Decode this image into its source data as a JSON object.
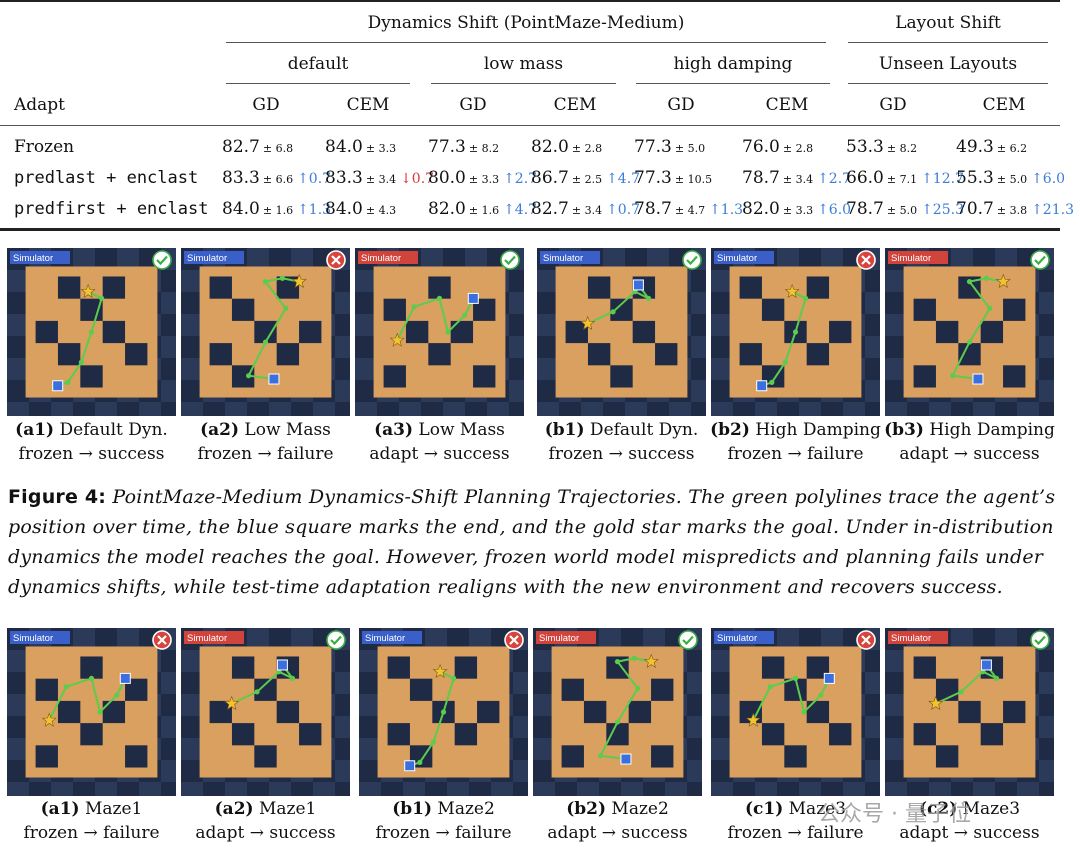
{
  "table": {
    "group_headers": [
      "Dynamics Shift (PointMaze-Medium)",
      "Layout Shift"
    ],
    "sub_headers": [
      "default",
      "low mass",
      "high damping",
      "Unseen Layouts"
    ],
    "adapt_label": "Adapt",
    "methods": [
      "GD",
      "CEM",
      "GD",
      "CEM",
      "GD",
      "CEM",
      "GD",
      "CEM"
    ],
    "rows": [
      {
        "label": "Frozen",
        "cells": [
          {
            "v": "82.7",
            "s": "± 6.8",
            "d": ""
          },
          {
            "v": "84.0",
            "s": "± 3.3",
            "d": ""
          },
          {
            "v": "77.3",
            "s": "± 8.2",
            "d": ""
          },
          {
            "v": "82.0",
            "s": "± 2.8",
            "d": ""
          },
          {
            "v": "77.3",
            "s": "± 5.0",
            "d": ""
          },
          {
            "v": "76.0",
            "s": "± 2.8",
            "d": ""
          },
          {
            "v": "53.3",
            "s": "± 8.2",
            "d": ""
          },
          {
            "v": "49.3",
            "s": "± 6.2",
            "d": ""
          }
        ]
      },
      {
        "label": "predlast + enclast",
        "cells": [
          {
            "v": "83.3",
            "s": "± 6.6",
            "d": "↑0.7",
            "dir": "up"
          },
          {
            "v": "83.3",
            "s": "± 3.4",
            "d": "↓0.7",
            "dir": "down"
          },
          {
            "v": "80.0",
            "s": "± 3.3",
            "d": "↑2.7",
            "dir": "up"
          },
          {
            "v": "86.7",
            "s": "± 2.5",
            "d": "↑4.7",
            "dir": "up"
          },
          {
            "v": "77.3",
            "s": "± 10.5",
            "d": ""
          },
          {
            "v": "78.7",
            "s": "± 3.4",
            "d": "↑2.7",
            "dir": "up"
          },
          {
            "v": "66.0",
            "s": "± 7.1",
            "d": "↑12.7",
            "dir": "up"
          },
          {
            "v": "55.3",
            "s": "± 5.0",
            "d": "↑6.0",
            "dir": "up"
          }
        ]
      },
      {
        "label": "predfirst + enclast",
        "cells": [
          {
            "v": "84.0",
            "s": "± 1.6",
            "d": "↑1.3",
            "dir": "up"
          },
          {
            "v": "84.0",
            "s": "± 4.3",
            "d": ""
          },
          {
            "v": "82.0",
            "s": "± 1.6",
            "d": "↑4.7",
            "dir": "up"
          },
          {
            "v": "82.7",
            "s": "± 3.4",
            "d": "↑0.7",
            "dir": "up"
          },
          {
            "v": "78.7",
            "s": "± 4.7",
            "d": "↑1.3",
            "dir": "up"
          },
          {
            "v": "82.0",
            "s": "± 3.3",
            "d": "↑6.0",
            "dir": "up"
          },
          {
            "v": "78.7",
            "s": "± 5.0",
            "d": "↑25.3",
            "dir": "up"
          },
          {
            "v": "70.7",
            "s": "± 3.8",
            "d": "↑21.3",
            "dir": "up"
          }
        ]
      }
    ]
  },
  "row1_panels": [
    {
      "badge": "Simulator",
      "badge_color": "#3a5fc8",
      "status": "success",
      "label": "(a1)",
      "title": "Default Dyn.",
      "line2": "frozen → success"
    },
    {
      "badge": "Simulator",
      "badge_color": "#3a5fc8",
      "status": "failure",
      "label": "(a2)",
      "title": "Low Mass",
      "line2": "frozen → failure"
    },
    {
      "badge": "Simulator",
      "badge_color": "#d0443c",
      "status": "success",
      "label": "(a3)",
      "title": "Low Mass",
      "line2": "adapt → success"
    },
    {
      "badge": "Simulator",
      "badge_color": "#3a5fc8",
      "status": "success",
      "label": "(b1)",
      "title": "Default Dyn.",
      "line2": "frozen → success"
    },
    {
      "badge": "Simulator",
      "badge_color": "#3a5fc8",
      "status": "failure",
      "label": "(b2)",
      "title": "High Damping",
      "line2": "frozen → failure"
    },
    {
      "badge": "Simulator",
      "badge_color": "#d0443c",
      "status": "success",
      "label": "(b3)",
      "title": "High Damping",
      "line2": "adapt → success"
    }
  ],
  "figure_caption": {
    "label": "Figure 4:",
    "text": "PointMaze-Medium Dynamics-Shift Planning Trajectories. The green polylines trace the agent’s position over time, the blue square marks the end, and the gold star marks the goal. Under in-distribution dynamics the model reaches the goal. However, frozen world model mispredicts and planning fails under dynamics shifts, while test-time adaptation realigns with the new environment and recovers success."
  },
  "row2_panels": [
    {
      "badge": "Simulator",
      "badge_color": "#3a5fc8",
      "status": "failure",
      "label": "(a1)",
      "title": "Maze1",
      "line2": "frozen → failure"
    },
    {
      "badge": "Simulator",
      "badge_color": "#d0443c",
      "status": "success",
      "label": "(a2)",
      "title": "Maze1",
      "line2": "adapt → success"
    },
    {
      "badge": "Simulator",
      "badge_color": "#3a5fc8",
      "status": "failure",
      "label": "(b1)",
      "title": "Maze2",
      "line2": "frozen → failure"
    },
    {
      "badge": "Simulator",
      "badge_color": "#d0443c",
      "status": "success",
      "label": "(b2)",
      "title": "Maze2",
      "line2": "adapt → success"
    },
    {
      "badge": "Simulator",
      "badge_color": "#3a5fc8",
      "status": "failure",
      "label": "(c1)",
      "title": "Maze3",
      "line2": "frozen → failure"
    },
    {
      "badge": "Simulator",
      "badge_color": "#d0443c",
      "status": "success",
      "label": "(c2)",
      "title": "Maze3",
      "line2": "adapt → success"
    }
  ],
  "watermark": "公众号 · 量子位",
  "colors": {
    "maze_floor": "#d9a05f",
    "checker_dark": "#1f2a44",
    "checker_light": "#2c3a5a",
    "trajectory": "#5bcc4c",
    "end_marker": "#3b6fe0",
    "goal_star": "#f2c230"
  }
}
